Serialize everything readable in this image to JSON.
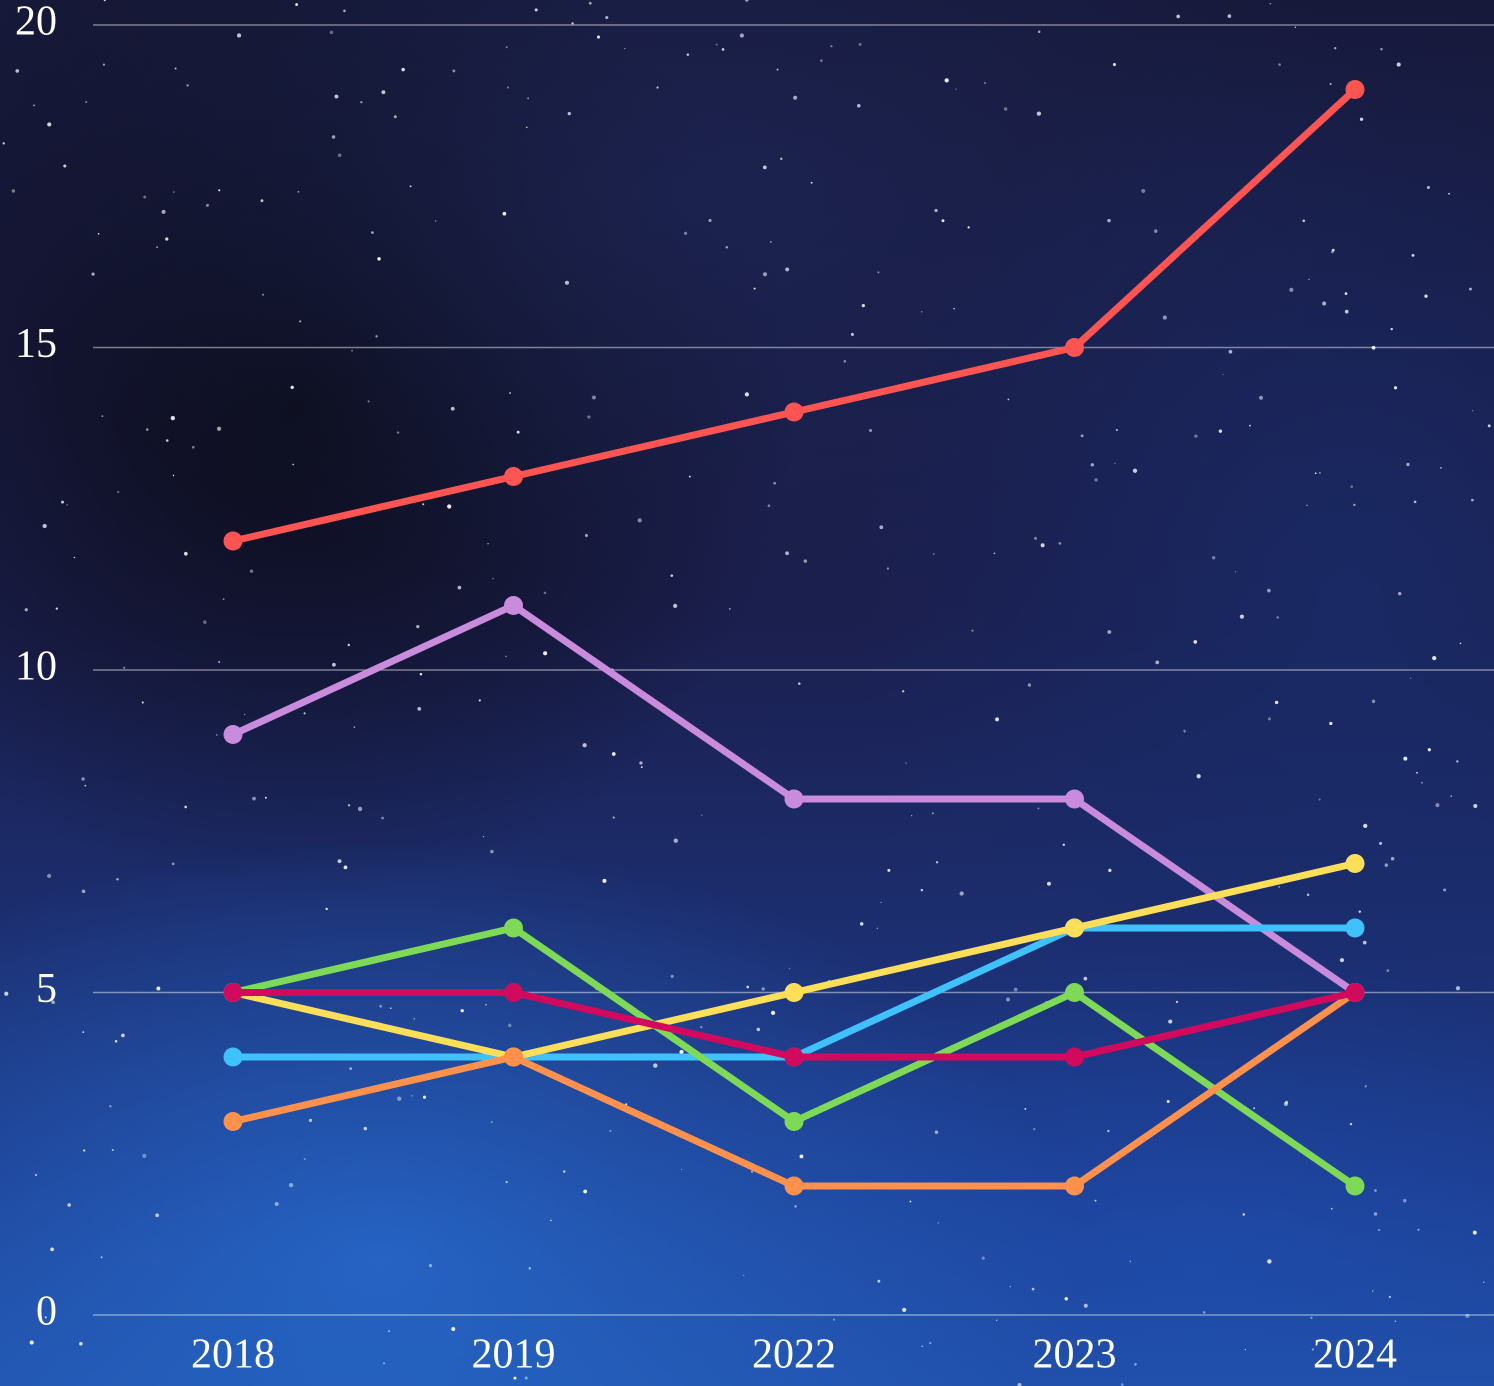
{
  "chart_data": {
    "type": "line",
    "categories": [
      "2018",
      "2019",
      "2022",
      "2023",
      "2024"
    ],
    "series": [
      {
        "color": "#ff5552",
        "values": [
          12,
          13,
          14,
          15,
          19
        ]
      },
      {
        "color": "#c98bdb",
        "values": [
          9,
          11,
          8,
          8,
          5
        ]
      },
      {
        "color": "#3fc1fb",
        "values": [
          4,
          4,
          4,
          6,
          6
        ]
      },
      {
        "color": "#ffde59",
        "values": [
          5,
          4,
          5,
          6,
          7
        ]
      },
      {
        "color": "#7ed957",
        "values": [
          5,
          6,
          3,
          5,
          2
        ]
      },
      {
        "color": "#ff914d",
        "values": [
          3,
          4,
          2,
          2,
          5
        ]
      },
      {
        "color": "#d10a5e",
        "values": [
          5,
          5,
          4,
          4,
          5
        ]
      }
    ],
    "ylim": [
      0,
      20
    ],
    "yticks": [
      0,
      5,
      10,
      15,
      20
    ],
    "grid": true
  }
}
